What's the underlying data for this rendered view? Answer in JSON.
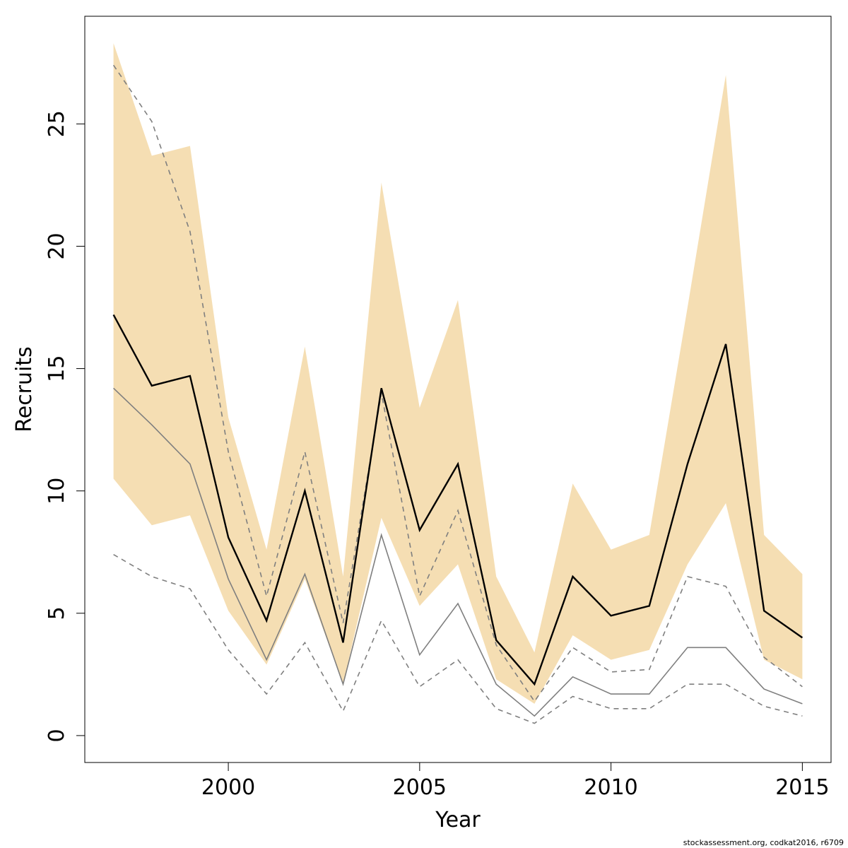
{
  "chart_data": {
    "type": "line",
    "title": "",
    "xlabel": "Year",
    "ylabel": "Recruits",
    "xlim": [
      1996.25,
      2015.75
    ],
    "ylim": [
      -1.1,
      29.4
    ],
    "x_ticks": [
      2000,
      2005,
      2010,
      2015
    ],
    "y_ticks": [
      0,
      5,
      10,
      15,
      20,
      25
    ],
    "grid": false,
    "legend": "none",
    "x": [
      1997,
      1998,
      1999,
      2000,
      2001,
      2002,
      2003,
      2004,
      2005,
      2006,
      2007,
      2008,
      2009,
      2010,
      2011,
      2012,
      2013,
      2014,
      2015
    ],
    "band": {
      "color": "#f5deb3",
      "upper": [
        28.3,
        23.7,
        24.1,
        13.0,
        7.6,
        15.9,
        6.5,
        22.6,
        13.4,
        17.8,
        6.5,
        3.4,
        10.3,
        7.6,
        8.2,
        17.5,
        27.0,
        8.2,
        6.6
      ],
      "lower": [
        10.5,
        8.6,
        9.0,
        5.1,
        2.9,
        6.4,
        2.1,
        8.9,
        5.3,
        7.0,
        2.3,
        1.3,
        4.1,
        3.1,
        3.5,
        7.0,
        9.5,
        3.1,
        2.3
      ]
    },
    "series": [
      {
        "style": "main",
        "color": "#000000",
        "values": [
          17.2,
          14.3,
          14.7,
          8.1,
          4.7,
          10.0,
          3.8,
          14.2,
          8.4,
          11.1,
          3.9,
          2.1,
          6.5,
          4.9,
          5.3,
          11.1,
          16.0,
          5.1,
          4.0
        ]
      },
      {
        "style": "solid-grey",
        "color": "#7f7f7f",
        "values": [
          14.2,
          12.7,
          11.1,
          6.4,
          3.1,
          6.6,
          2.1,
          8.2,
          3.3,
          5.4,
          2.1,
          0.8,
          2.4,
          1.7,
          1.7,
          3.6,
          3.6,
          1.9,
          1.3
        ]
      },
      {
        "style": "dashed-upper",
        "color": "#7f7f7f",
        "values": [
          27.4,
          25.1,
          20.6,
          11.6,
          5.7,
          11.6,
          4.6,
          14.0,
          5.7,
          9.2,
          3.7,
          1.4,
          3.6,
          2.6,
          2.7,
          6.5,
          6.1,
          3.2,
          2.0
        ]
      },
      {
        "style": "dashed-lower",
        "color": "#7f7f7f",
        "values": [
          7.4,
          6.5,
          6.0,
          3.5,
          1.7,
          3.8,
          1.0,
          4.7,
          2.0,
          3.1,
          1.1,
          0.5,
          1.6,
          1.1,
          1.1,
          2.1,
          2.1,
          1.2,
          0.8
        ]
      }
    ]
  },
  "credit": "stockassessment.org, codkat2016, r6709"
}
